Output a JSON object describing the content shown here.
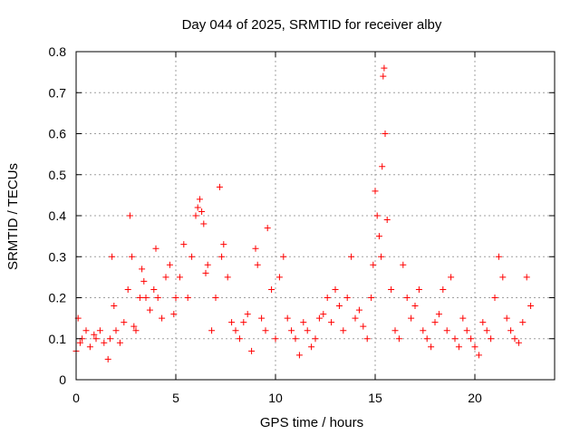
{
  "chart_data": {
    "type": "scatter",
    "title": "Day 044 of 2025, SRMTID for receiver alby",
    "xlabel": "GPS time / hours",
    "ylabel": "SRMTID / TECUs",
    "xlim": [
      0,
      24
    ],
    "ylim": [
      0,
      0.8
    ],
    "x_ticks": [
      0,
      5,
      10,
      15,
      20
    ],
    "x_tick_labels": [
      "0",
      "5",
      "10",
      "15",
      "20"
    ],
    "y_ticks": [
      0,
      0.1,
      0.2,
      0.3,
      0.4,
      0.5,
      0.6,
      0.7,
      0.8
    ],
    "y_tick_labels": [
      "0",
      "0.1",
      "0.2",
      "0.3",
      "0.4",
      "0.5",
      "0.6",
      "0.7",
      "0.8"
    ],
    "grid": true,
    "marker": "+",
    "series": [
      {
        "name": "SRMTID",
        "color": "#ff0000",
        "x": [
          0.0,
          0.1,
          0.2,
          0.3,
          0.5,
          0.7,
          0.9,
          1.0,
          1.2,
          1.4,
          1.6,
          1.7,
          1.8,
          1.9,
          2.0,
          2.2,
          2.4,
          2.6,
          2.7,
          2.8,
          2.9,
          3.0,
          3.2,
          3.3,
          3.4,
          3.5,
          3.7,
          3.9,
          4.0,
          4.1,
          4.3,
          4.5,
          4.7,
          4.9,
          5.0,
          5.2,
          5.4,
          5.6,
          5.8,
          6.0,
          6.1,
          6.2,
          6.3,
          6.4,
          6.5,
          6.6,
          6.8,
          7.0,
          7.2,
          7.3,
          7.4,
          7.6,
          7.8,
          8.0,
          8.2,
          8.4,
          8.6,
          8.8,
          9.0,
          9.1,
          9.3,
          9.5,
          9.6,
          9.8,
          10.0,
          10.2,
          10.4,
          10.6,
          10.8,
          11.0,
          11.2,
          11.4,
          11.6,
          11.8,
          12.0,
          12.2,
          12.4,
          12.6,
          12.8,
          13.0,
          13.2,
          13.4,
          13.6,
          13.8,
          14.0,
          14.2,
          14.4,
          14.6,
          14.8,
          14.9,
          15.0,
          15.1,
          15.2,
          15.3,
          15.35,
          15.4,
          15.45,
          15.5,
          15.6,
          15.8,
          16.0,
          16.2,
          16.4,
          16.6,
          16.8,
          17.0,
          17.2,
          17.4,
          17.6,
          17.8,
          18.0,
          18.2,
          18.4,
          18.6,
          18.8,
          19.0,
          19.2,
          19.4,
          19.6,
          19.8,
          20.0,
          20.2,
          20.4,
          20.6,
          20.8,
          21.0,
          21.2,
          21.4,
          21.6,
          21.8,
          22.0,
          22.2,
          22.4,
          22.6,
          22.8
        ],
        "y": [
          0.07,
          0.15,
          0.09,
          0.1,
          0.12,
          0.08,
          0.11,
          0.1,
          0.12,
          0.09,
          0.05,
          0.1,
          0.3,
          0.18,
          0.12,
          0.09,
          0.14,
          0.22,
          0.4,
          0.3,
          0.13,
          0.12,
          0.2,
          0.27,
          0.24,
          0.2,
          0.17,
          0.22,
          0.32,
          0.2,
          0.15,
          0.25,
          0.28,
          0.16,
          0.2,
          0.25,
          0.33,
          0.2,
          0.3,
          0.4,
          0.42,
          0.44,
          0.41,
          0.38,
          0.26,
          0.28,
          0.12,
          0.2,
          0.47,
          0.3,
          0.33,
          0.25,
          0.14,
          0.12,
          0.1,
          0.14,
          0.16,
          0.07,
          0.32,
          0.28,
          0.15,
          0.12,
          0.37,
          0.22,
          0.1,
          0.25,
          0.3,
          0.15,
          0.12,
          0.1,
          0.06,
          0.14,
          0.12,
          0.08,
          0.1,
          0.15,
          0.16,
          0.2,
          0.14,
          0.22,
          0.18,
          0.12,
          0.2,
          0.3,
          0.15,
          0.17,
          0.13,
          0.1,
          0.2,
          0.28,
          0.46,
          0.4,
          0.35,
          0.3,
          0.52,
          0.74,
          0.76,
          0.6,
          0.39,
          0.22,
          0.12,
          0.1,
          0.28,
          0.2,
          0.15,
          0.18,
          0.22,
          0.12,
          0.1,
          0.08,
          0.14,
          0.16,
          0.22,
          0.12,
          0.25,
          0.1,
          0.08,
          0.15,
          0.12,
          0.1,
          0.08,
          0.06,
          0.14,
          0.12,
          0.1,
          0.2,
          0.3,
          0.25,
          0.15,
          0.12,
          0.1,
          0.09,
          0.14,
          0.25,
          0.18
        ]
      }
    ]
  }
}
